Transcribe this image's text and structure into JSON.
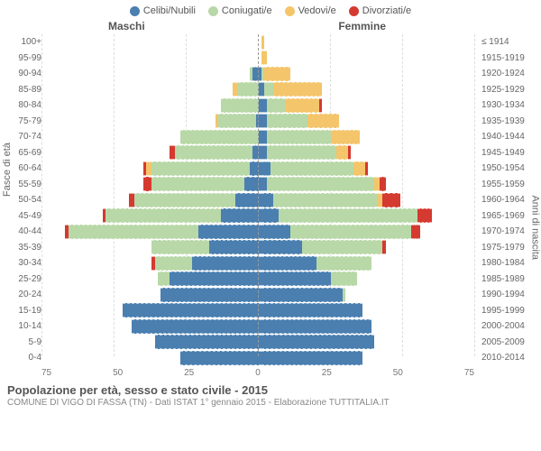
{
  "legend": [
    {
      "label": "Celibi/Nubili",
      "color": "#4a7fb0"
    },
    {
      "label": "Coniugati/e",
      "color": "#b8d8a7"
    },
    {
      "label": "Vedovi/e",
      "color": "#f4c56a"
    },
    {
      "label": "Divorziati/e",
      "color": "#d43a2f"
    }
  ],
  "header_male": "Maschi",
  "header_female": "Femmine",
  "axis_left_title": "Fasce di età",
  "axis_right_title": "Anni di nascita",
  "x_ticks": [
    "75",
    "50",
    "25",
    "0",
    "25",
    "50",
    "75"
  ],
  "x_max": 75,
  "footer_title": "Popolazione per età, sesso e stato civile - 2015",
  "footer_sub": "COMUNE DI VIGO DI FASSA (TN) - Dati ISTAT 1° gennaio 2015 - Elaborazione TUTTITALIA.IT",
  "rows": [
    {
      "age": "100+",
      "birth": "≤ 1914",
      "m": [
        0,
        0,
        0,
        0
      ],
      "f": [
        0,
        0,
        1,
        0
      ]
    },
    {
      "age": "95-99",
      "birth": "1915-1919",
      "m": [
        0,
        0,
        0,
        0
      ],
      "f": [
        0,
        0,
        2,
        0
      ]
    },
    {
      "age": "90-94",
      "birth": "1920-1924",
      "m": [
        3,
        1,
        0,
        0
      ],
      "f": [
        0,
        1,
        9,
        0
      ]
    },
    {
      "age": "85-89",
      "birth": "1925-1929",
      "m": [
        1,
        7,
        2,
        0
      ],
      "f": [
        1,
        3,
        17,
        0
      ]
    },
    {
      "age": "80-84",
      "birth": "1930-1934",
      "m": [
        1,
        13,
        0,
        0
      ],
      "f": [
        2,
        6,
        12,
        1
      ]
    },
    {
      "age": "75-79",
      "birth": "1935-1939",
      "m": [
        2,
        13,
        1,
        0
      ],
      "f": [
        2,
        14,
        11,
        0
      ]
    },
    {
      "age": "70-74",
      "birth": "1940-1944",
      "m": [
        1,
        27,
        0,
        0
      ],
      "f": [
        2,
        22,
        10,
        0
      ]
    },
    {
      "age": "65-69",
      "birth": "1945-1949",
      "m": [
        3,
        27,
        0,
        2
      ],
      "f": [
        2,
        24,
        4,
        1
      ]
    },
    {
      "age": "60-64",
      "birth": "1950-1954",
      "m": [
        4,
        34,
        2,
        1
      ],
      "f": [
        3,
        29,
        4,
        1
      ]
    },
    {
      "age": "55-59",
      "birth": "1955-1959",
      "m": [
        6,
        32,
        0,
        3
      ],
      "f": [
        2,
        37,
        2,
        2
      ]
    },
    {
      "age": "50-54",
      "birth": "1960-1964",
      "m": [
        9,
        35,
        0,
        2
      ],
      "f": [
        4,
        36,
        2,
        6
      ]
    },
    {
      "age": "45-49",
      "birth": "1965-1969",
      "m": [
        14,
        40,
        0,
        1
      ],
      "f": [
        6,
        48,
        0,
        5
      ]
    },
    {
      "age": "40-44",
      "birth": "1970-1974",
      "m": [
        22,
        45,
        0,
        1
      ],
      "f": [
        10,
        42,
        0,
        3
      ]
    },
    {
      "age": "35-39",
      "birth": "1975-1979",
      "m": [
        18,
        20,
        0,
        0
      ],
      "f": [
        14,
        28,
        0,
        1
      ]
    },
    {
      "age": "30-34",
      "birth": "1980-1984",
      "m": [
        24,
        13,
        0,
        1
      ],
      "f": [
        19,
        19,
        0,
        0
      ]
    },
    {
      "age": "25-29",
      "birth": "1985-1989",
      "m": [
        32,
        4,
        0,
        0
      ],
      "f": [
        24,
        9,
        0,
        0
      ]
    },
    {
      "age": "20-24",
      "birth": "1990-1994",
      "m": [
        35,
        0,
        0,
        0
      ],
      "f": [
        28,
        1,
        0,
        0
      ]
    },
    {
      "age": "15-19",
      "birth": "1995-1999",
      "m": [
        48,
        0,
        0,
        0
      ],
      "f": [
        35,
        0,
        0,
        0
      ]
    },
    {
      "age": "10-14",
      "birth": "2000-2004",
      "m": [
        45,
        0,
        0,
        0
      ],
      "f": [
        38,
        0,
        0,
        0
      ]
    },
    {
      "age": "5-9",
      "birth": "2005-2009",
      "m": [
        37,
        0,
        0,
        0
      ],
      "f": [
        39,
        0,
        0,
        0
      ]
    },
    {
      "age": "0-4",
      "birth": "2010-2014",
      "m": [
        28,
        0,
        0,
        0
      ],
      "f": [
        35,
        0,
        0,
        0
      ]
    }
  ]
}
